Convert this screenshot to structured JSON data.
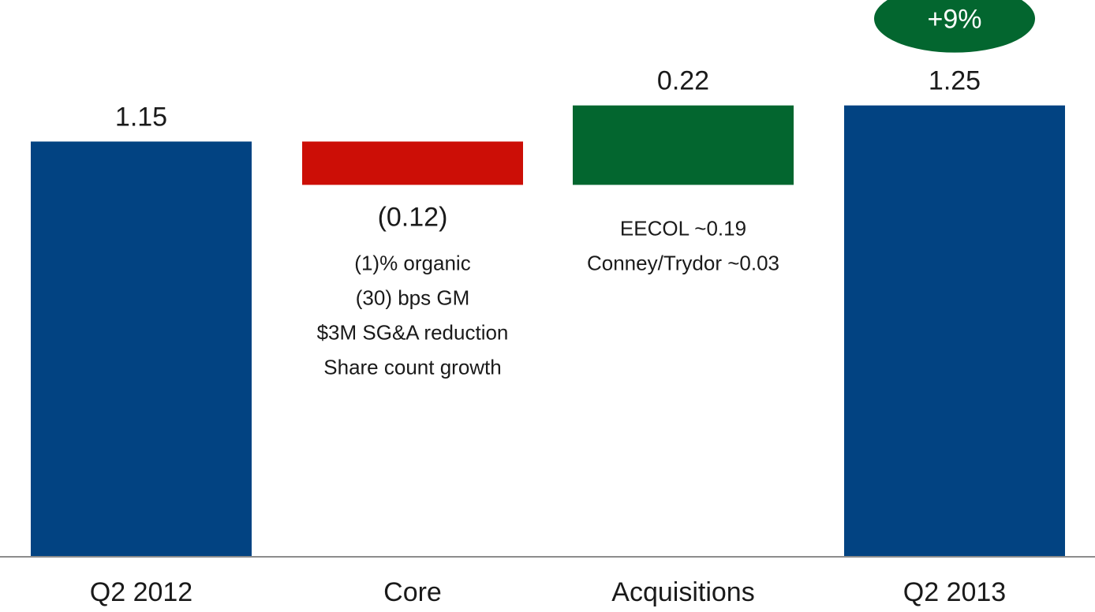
{
  "chart_data": {
    "type": "bar",
    "subtype": "waterfall",
    "categories": [
      "Q2 2012",
      "Core",
      "Acquisitions",
      "Q2 2013"
    ],
    "values": [
      1.15,
      -0.12,
      0.22,
      1.25
    ],
    "value_labels": [
      "1.15",
      "(0.12)",
      "0.22",
      "1.25"
    ],
    "bar_colors": [
      "#024382",
      "#cc0e06",
      "#03662f",
      "#024382"
    ],
    "notes": {
      "Core": [
        "(1)% organic",
        "(30) bps GM",
        "$3M SG&A reduction",
        "Share count growth"
      ],
      "Acquisitions": [
        "EECOL ~0.19",
        "Conney/Trydor ~0.03"
      ]
    },
    "badge": {
      "text": "+9%",
      "category": "Q2 2013",
      "color": "#03662f"
    },
    "ylim": [
      0,
      1.4
    ],
    "grid": false,
    "legend": false,
    "title": "",
    "xlabel": "",
    "ylabel": ""
  }
}
